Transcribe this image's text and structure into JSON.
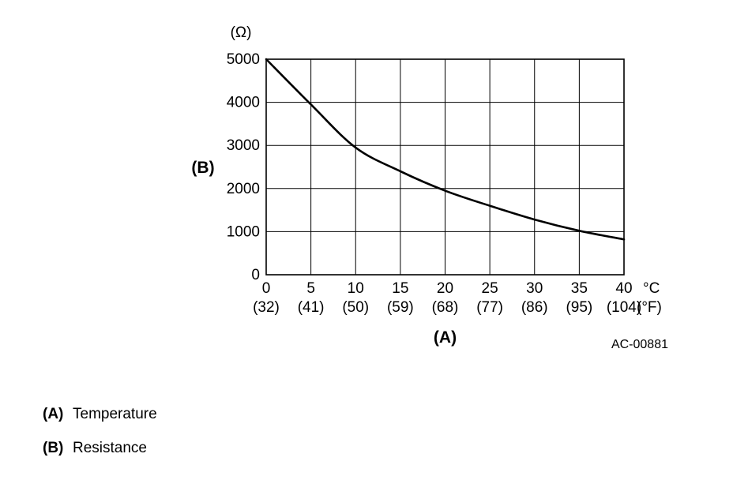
{
  "chart_data": {
    "type": "line",
    "title": "",
    "y_unit_label": "(Ω)",
    "x_unit_c": "°C",
    "x_unit_f": "(°F)",
    "xlabel": "(A)",
    "ylabel": "(B)",
    "figure_id": "AC-00881",
    "x": [
      0,
      5,
      10,
      15,
      20,
      25,
      30,
      35,
      40
    ],
    "values": [
      5000,
      3950,
      2950,
      2400,
      1950,
      1600,
      1280,
      1020,
      820
    ],
    "x_ticks_c": [
      "0",
      "5",
      "10",
      "15",
      "20",
      "25",
      "30",
      "35",
      "40"
    ],
    "x_ticks_f": [
      "(32)",
      "(41)",
      "(50)",
      "(59)",
      "(68)",
      "(77)",
      "(86)",
      "(95)",
      "(104)"
    ],
    "y_ticks": [
      "0",
      "1000",
      "2000",
      "3000",
      "4000",
      "5000"
    ],
    "y_tick_values": [
      0,
      1000,
      2000,
      3000,
      4000,
      5000
    ],
    "xlim": [
      0,
      40
    ],
    "ylim": [
      0,
      5000
    ],
    "grid": true,
    "line_color": "#000000",
    "grid_color": "#000000"
  },
  "legend": {
    "items": [
      {
        "key": "(A)",
        "label": "Temperature"
      },
      {
        "key": "(B)",
        "label": "Resistance"
      }
    ]
  }
}
